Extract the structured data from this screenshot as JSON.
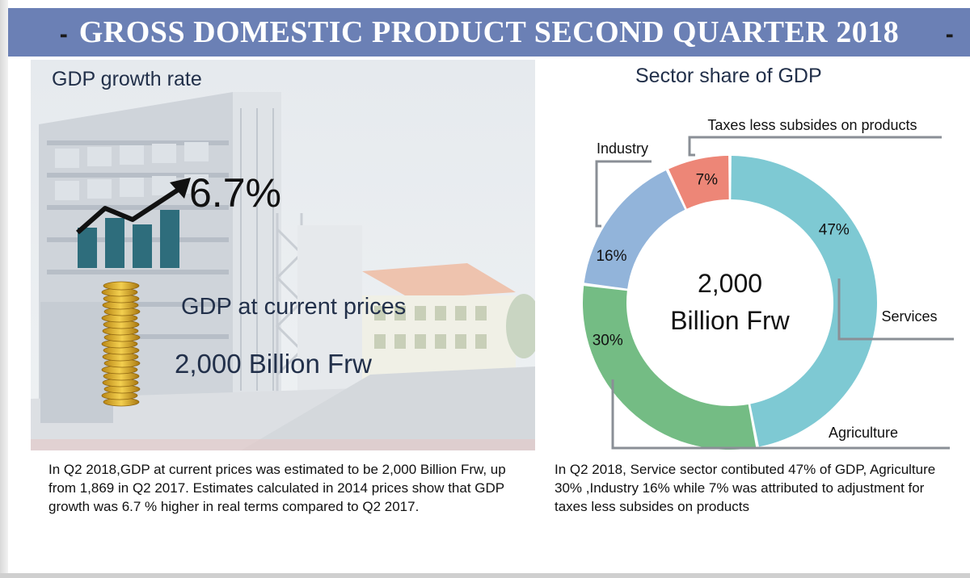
{
  "header": {
    "title": "GROSS DOMESTIC PRODUCT SECOND QUARTER 2018"
  },
  "left": {
    "title": "GDP growth rate",
    "growth_value": "6.7%",
    "current_label": "GDP at current prices",
    "current_value": "2,000 Billion Frw",
    "description": "In Q2 2018,GDP at current prices was estimated to be 2,000 Billion Frw, up from  1,869 in Q2 2017. Estimates calculated in 2014 prices show that GDP growth was 6.7 % higher in real terms compared to Q2 2017."
  },
  "right": {
    "title": "Sector share of GDP",
    "center_line1": "2,000",
    "center_line2": "Billion Frw",
    "description": "In Q2 2018, Service sector contibuted 47% of GDP, Agriculture 30% ,Industry 16%  while 7% was attributed to adjustment for taxes less subsides on products"
  },
  "colors": {
    "header": "#6b80b5",
    "services": "#7ec9d3",
    "agriculture": "#74bc84",
    "industry": "#92b4da",
    "taxes": "#ed8677",
    "bars": "#2e6d7c",
    "coins": "#e0b22c"
  },
  "chart_data": {
    "type": "pie",
    "title": "Sector share of GDP",
    "categories": [
      "Services",
      "Agriculture",
      "Industry",
      "Taxes less subsides on products"
    ],
    "values": [
      47,
      30,
      16,
      7
    ],
    "labels": [
      "47%",
      "30%",
      "16%",
      "7%"
    ],
    "colors": [
      "#7ec9d3",
      "#74bc84",
      "#92b4da",
      "#ed8677"
    ]
  }
}
